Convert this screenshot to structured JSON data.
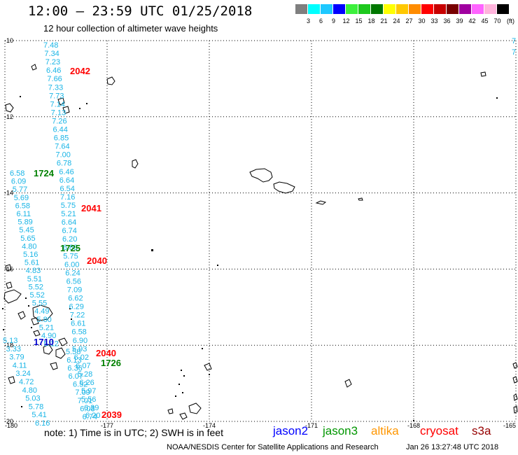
{
  "header": {
    "title": "12:00 – 23:59 UTC 01/25/2018",
    "subtitle": "12 hour collection of altimeter wave heights"
  },
  "legend": {
    "unit": "(ft)",
    "labels": [
      "3",
      "6",
      "9",
      "12",
      "15",
      "18",
      "21",
      "24",
      "27",
      "30",
      "33",
      "36",
      "39",
      "42",
      "45",
      "70"
    ],
    "colors": [
      "#7f7f7f",
      "#00ffff",
      "#1ec8ff",
      "#0000ff",
      "#3cf03c",
      "#1ec81e",
      "#007800",
      "#ffff00",
      "#ffc800",
      "#ff8c00",
      "#ff0000",
      "#c80000",
      "#780000",
      "#a000a0",
      "#ff64ff",
      "#ffb4dc",
      "#000000"
    ]
  },
  "map": {
    "lon_labels": [
      "-180",
      "-177",
      "-174",
      "-171",
      "-168",
      "-165"
    ],
    "lat_labels": [
      "-10",
      "-12",
      "-14",
      "-16",
      "-18",
      "-20"
    ],
    "edge_values": [
      "7",
      "7"
    ],
    "passes": [
      {
        "label": "2042",
        "sat": "cryosat",
        "color": "#ff0000"
      },
      {
        "label": "1724",
        "sat": "jason3",
        "color": "#008000"
      },
      {
        "label": "2041",
        "sat": "cryosat",
        "color": "#ff0000"
      },
      {
        "label": "1725",
        "sat": "jason3",
        "color": "#008000"
      },
      {
        "label": "2040",
        "sat": "cryosat",
        "color": "#ff0000"
      },
      {
        "label": "1710",
        "sat": "jason2",
        "color": "#0000cc"
      },
      {
        "label": "2040",
        "sat": "cryosat",
        "color": "#ff0000"
      },
      {
        "label": "1726",
        "sat": "jason3",
        "color": "#008000"
      },
      {
        "label": "2039",
        "sat": "cryosat",
        "color": "#ff0000"
      }
    ],
    "wave_heights": [
      "7.48",
      "7.34",
      "7.23",
      "6.46",
      "7.66",
      "7.33",
      "7.73",
      "7.14",
      "7.13",
      "7.26",
      "6.44",
      "6.85",
      "7.64",
      "7.00",
      "6.78",
      "6.46",
      "6.64",
      "6.54",
      "7.16",
      "5.75",
      "5.21",
      "6.64",
      "6.74",
      "6.20",
      "6.88",
      "5.75",
      "6.00",
      "6.24",
      "6.56",
      "7.09",
      "6.62",
      "6.29",
      "7.22",
      "6.61",
      "6.58",
      "6.90",
      "5.93",
      "6.02",
      "6.07",
      "5.28",
      "6.26",
      "5.97",
      "5.56",
      "6.39",
      "6.20",
      "6.58",
      "6.09",
      "5.77",
      "5.69",
      "6.58",
      "6.11",
      "5.89",
      "5.45",
      "5.65",
      "4.80",
      "5.16",
      "5.61",
      "4.83",
      "5.51",
      "5.52",
      "5.52",
      "5.55",
      "4.49",
      "5.80",
      "5.21",
      "4.90",
      "5.12",
      "5.58",
      "6.13",
      "6.36",
      "6.07",
      "6.52",
      "7.09",
      "7.01",
      "6.08",
      "6.74",
      "5.13",
      "3.33",
      "3.79",
      "4.11",
      "3.24",
      "4.72",
      "4.80",
      "5.03",
      "5.78",
      "5.41",
      "6.16"
    ]
  },
  "notes": {
    "note": "note:  1) Time is in UTC;  2) SWH is in feet",
    "satellites": [
      {
        "name": "jason2",
        "color": "#0000ff"
      },
      {
        "name": "jason3",
        "color": "#009600"
      },
      {
        "name": "altika",
        "color": "#ff9600"
      },
      {
        "name": "cryosat",
        "color": "#ff0000"
      },
      {
        "name": "s3a",
        "color": "#960000"
      }
    ],
    "credit": "NOAA/NESDIS Center for Satellite Applications and Research",
    "timestamp": "Jan 26 13:27:48 UTC 2018"
  }
}
